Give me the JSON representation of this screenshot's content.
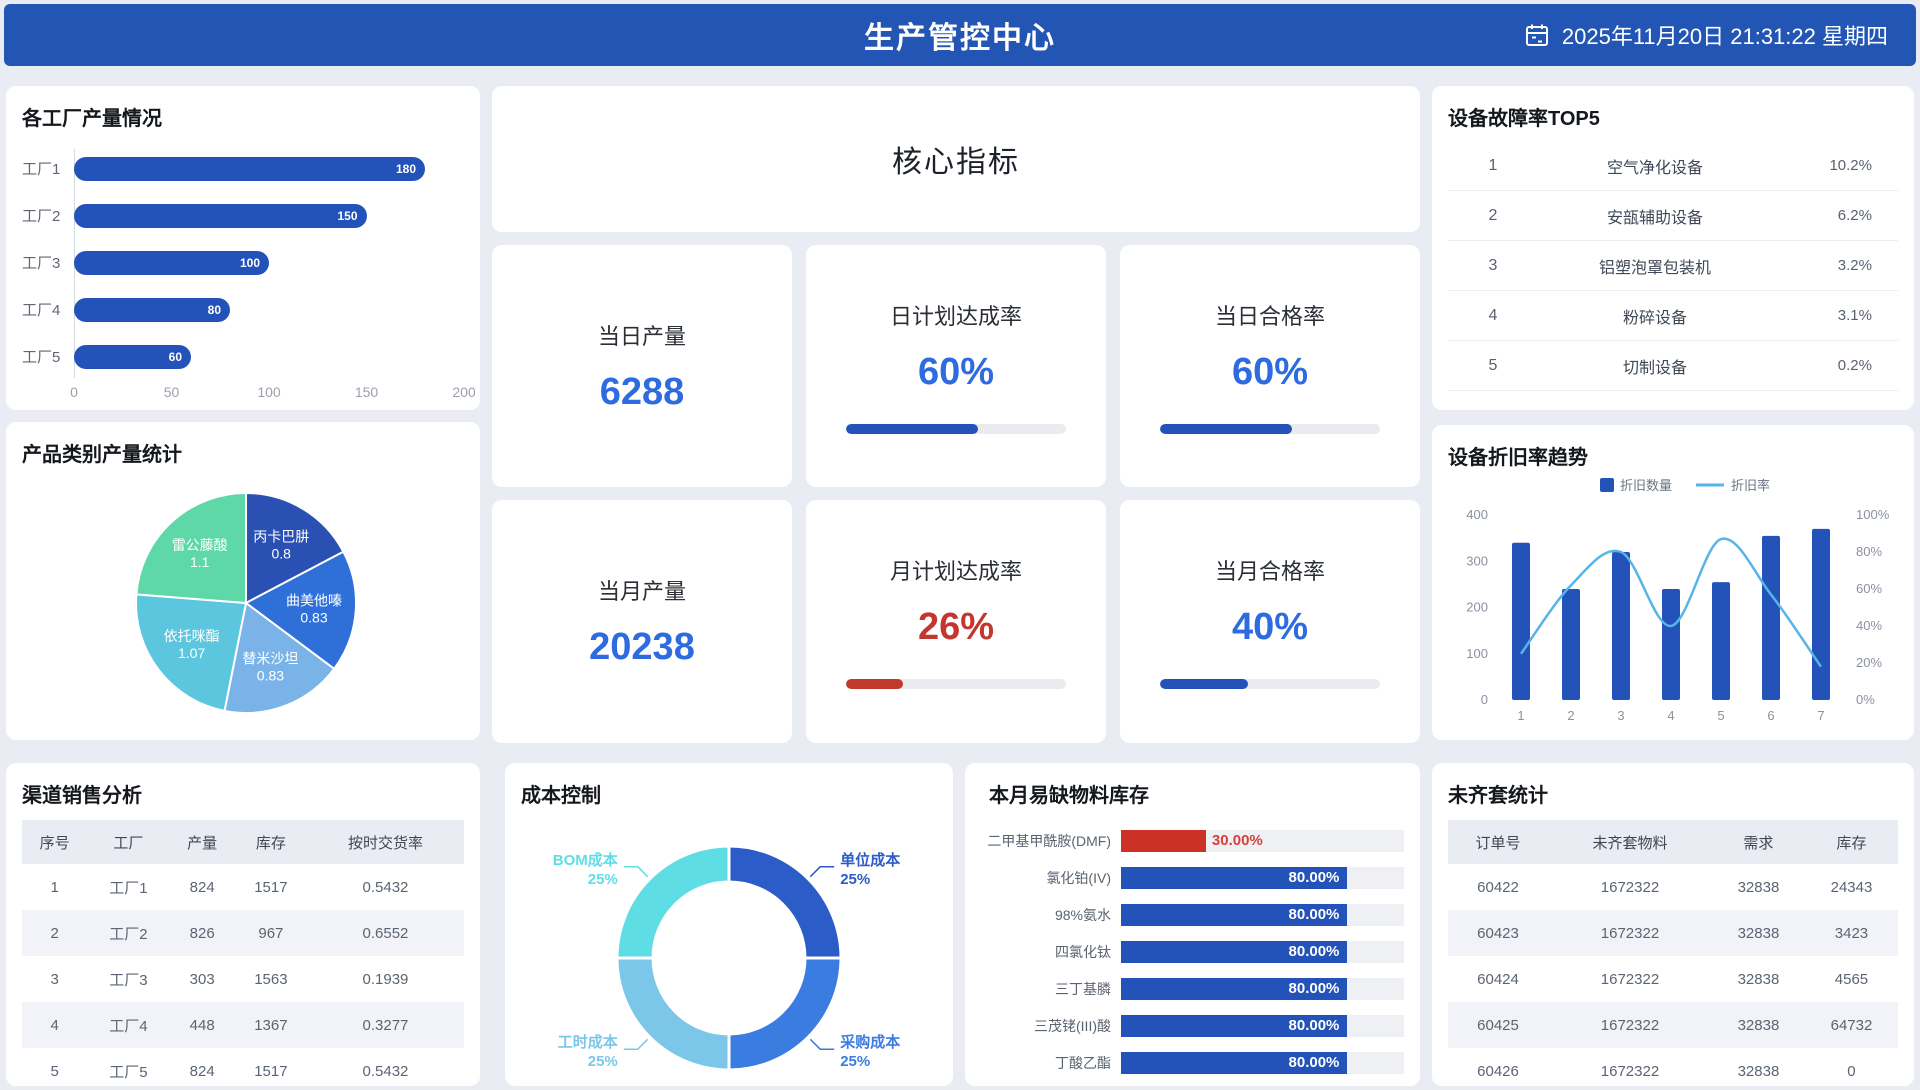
{
  "header": {
    "title": "生产管控中心",
    "datetime": "2025年11月20日 21:31:22 星期四"
  },
  "colors": {
    "header_bg": "#2356b4",
    "primary_blue": "#2353b8",
    "kpi_blue": "#2e6be0",
    "alert_red": "#c43630",
    "track_gray": "#e9ebef",
    "line_cyan": "#56b4e8"
  },
  "panels": {
    "factory": {
      "title": "各工厂产量情况",
      "chart": {
        "type": "bar",
        "orientation": "horizontal",
        "categories": [
          "工厂1",
          "工厂2",
          "工厂3",
          "工厂4",
          "工厂5"
        ],
        "values": [
          180,
          150,
          100,
          80,
          60
        ],
        "xlim": [
          0,
          200
        ],
        "ticks": [
          0,
          50,
          100,
          150,
          200
        ],
        "bar_color": "#2353b8"
      }
    },
    "core": {
      "banner_title": "核心指标",
      "cards": [
        {
          "label": "当日产量",
          "value": "6288",
          "value_color": "#2e6be0",
          "progress": null
        },
        {
          "label": "日计划达成率",
          "value": "60%",
          "value_color": "#2e6be0",
          "progress": 60,
          "bar_color": "#2353b8"
        },
        {
          "label": "当日合格率",
          "value": "60%",
          "value_color": "#2e6be0",
          "progress": 60,
          "bar_color": "#2353b8"
        },
        {
          "label": "当月产量",
          "value": "20238",
          "value_color": "#2e6be0",
          "progress": null
        },
        {
          "label": "月计划达成率",
          "value": "26%",
          "value_color": "#c43630",
          "progress": 26,
          "bar_color": "#c0392b"
        },
        {
          "label": "当月合格率",
          "value": "40%",
          "value_color": "#2e6be0",
          "progress": 40,
          "bar_color": "#2353b8"
        }
      ]
    },
    "top5": {
      "title": "设备故障率TOP5",
      "rows": [
        {
          "rank": "1",
          "name": "空气净化设备",
          "rate": "10.2%"
        },
        {
          "rank": "2",
          "name": "安瓿辅助设备",
          "rate": "6.2%"
        },
        {
          "rank": "3",
          "name": "铝塑泡罩包装机",
          "rate": "3.2%"
        },
        {
          "rank": "4",
          "name": "粉碎设备",
          "rate": "3.1%"
        },
        {
          "rank": "5",
          "name": "切制设备",
          "rate": "0.2%"
        }
      ]
    },
    "pie": {
      "title": "产品类别产量统计",
      "chart": {
        "type": "pie",
        "slices": [
          {
            "label": "丙卡巴肼",
            "value": 0.8,
            "color": "#2b50b4"
          },
          {
            "label": "曲美他嗪",
            "value": 0.83,
            "color": "#2f6fd8"
          },
          {
            "label": "替米沙坦",
            "value": 0.83,
            "color": "#7ab3e8"
          },
          {
            "label": "依托咪酯",
            "value": 1.07,
            "color": "#5bc6dd"
          },
          {
            "label": "雷公藤酸",
            "value": 1.1,
            "color": "#5fd8a8"
          }
        ]
      }
    },
    "depreciation": {
      "title": "设备折旧率趋势",
      "chart": {
        "type": "bar+line",
        "x": [
          "1",
          "2",
          "3",
          "4",
          "5",
          "6",
          "7"
        ],
        "series": [
          {
            "name": "折旧数量",
            "type": "bar",
            "values": [
              340,
              240,
              320,
              240,
              255,
              355,
              370
            ],
            "color": "#2353b8"
          },
          {
            "name": "折旧率",
            "type": "line",
            "values": [
              25,
              62,
              80,
              40,
              87,
              57,
              18
            ],
            "color": "#56b4e8"
          }
        ],
        "y_left": {
          "min": 0,
          "max": 400,
          "ticks": [
            "0",
            "100",
            "200",
            "300",
            "400"
          ]
        },
        "y_right": {
          "min": 0,
          "max": 100,
          "ticks": [
            "0%",
            "20%",
            "40%",
            "60%",
            "80%",
            "100%"
          ]
        },
        "legend_position": "top"
      }
    },
    "channel": {
      "title": "渠道销售分析",
      "columns": [
        "序号",
        "工厂",
        "产量",
        "库存",
        "按时交货率"
      ],
      "rows": [
        [
          "1",
          "工厂1",
          "824",
          "1517",
          "0.5432"
        ],
        [
          "2",
          "工厂2",
          "826",
          "967",
          "0.6552"
        ],
        [
          "3",
          "工厂3",
          "303",
          "1563",
          "0.1939"
        ],
        [
          "4",
          "工厂4",
          "448",
          "1367",
          "0.3277"
        ],
        [
          "5",
          "工厂5",
          "824",
          "1517",
          "0.5432"
        ]
      ]
    },
    "cost": {
      "title": "成本控制",
      "chart": {
        "type": "pie",
        "donut": true,
        "slices": [
          {
            "label": "单位成本",
            "pct": "25%",
            "value": 25,
            "color": "#2b5cc8"
          },
          {
            "label": "采购成本",
            "pct": "25%",
            "value": 25,
            "color": "#3b7ce0"
          },
          {
            "label": "工时成本",
            "pct": "25%",
            "value": 25,
            "color": "#7cc6ea"
          },
          {
            "label": "BOM成本",
            "pct": "25%",
            "value": 25,
            "color": "#5fdde5"
          }
        ]
      }
    },
    "material": {
      "title": "本月易缺物料库存",
      "items": [
        {
          "label": "二甲基甲酰胺(DMF)",
          "pct": "30.00%",
          "value": 30,
          "color": "#cc3126",
          "label_outside": true,
          "text_color": "#d5413c"
        },
        {
          "label": "氯化铂(IV)",
          "pct": "80.00%",
          "value": 80,
          "color": "#2353b8",
          "label_outside": false
        },
        {
          "label": "98%氨水",
          "pct": "80.00%",
          "value": 80,
          "color": "#2353b8",
          "label_outside": false
        },
        {
          "label": "四氯化钛",
          "pct": "80.00%",
          "value": 80,
          "color": "#2353b8",
          "label_outside": false
        },
        {
          "label": "三丁基膦",
          "pct": "80.00%",
          "value": 80,
          "color": "#2353b8",
          "label_outside": false
        },
        {
          "label": "三茂铑(III)酸",
          "pct": "80.00%",
          "value": 80,
          "color": "#2353b8",
          "label_outside": false
        },
        {
          "label": "丁酸乙酯",
          "pct": "80.00%",
          "value": 80,
          "color": "#2353b8",
          "label_outside": false
        }
      ]
    },
    "incomplete": {
      "title": "未齐套统计",
      "columns": [
        "订单号",
        "未齐套物料",
        "需求",
        "库存"
      ],
      "rows": [
        [
          "60422",
          "1672322",
          "32838",
          "24343"
        ],
        [
          "60423",
          "1672322",
          "32838",
          "3423"
        ],
        [
          "60424",
          "1672322",
          "32838",
          "4565"
        ],
        [
          "60425",
          "1672322",
          "32838",
          "64732"
        ],
        [
          "60426",
          "1672322",
          "32838",
          "0"
        ]
      ]
    }
  }
}
